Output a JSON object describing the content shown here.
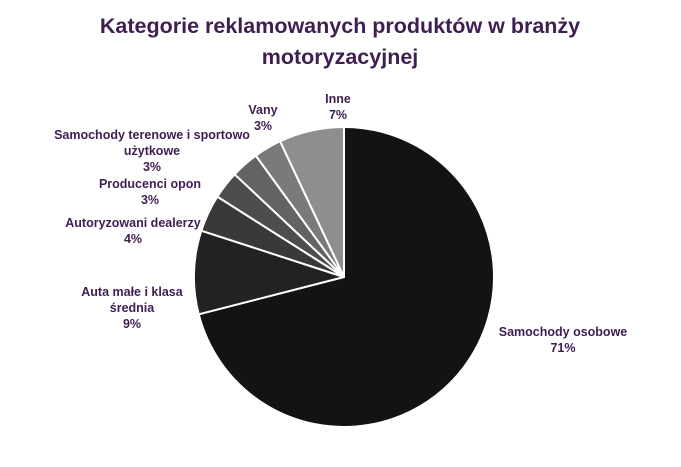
{
  "chart_data": {
    "type": "pie",
    "title_lines": [
      "Kategorie reklamowanych produktów w branży",
      "motoryzacyjnej"
    ],
    "start": "12 o'clock",
    "direction": "clockwise",
    "legend": "none (data labels next to slices)",
    "slices": [
      {
        "label": "Samochody osobowe",
        "label_lines": [
          "Samochody osobowe"
        ],
        "value_label": "71%",
        "value": 71,
        "color": "#131313"
      },
      {
        "label": "Auta małe i klasa średnia",
        "label_lines": [
          "Auta małe i klasa",
          "średnia"
        ],
        "value_label": "9%",
        "value": 9,
        "color": "#222222"
      },
      {
        "label": "Autoryzowani dealerzy",
        "label_lines": [
          "Autoryzowani dealerzy"
        ],
        "value_label": "4%",
        "value": 4,
        "color": "#393939"
      },
      {
        "label": "Producenci opon",
        "label_lines": [
          "Producenci opon"
        ],
        "value_label": "3%",
        "value": 3,
        "color": "#4d4d4d"
      },
      {
        "label": "Samochody terenowe i sportowo użytkowe",
        "label_lines": [
          "Samochody terenowe i sportowo",
          "użytkowe"
        ],
        "value_label": "3%",
        "value": 3,
        "color": "#636363"
      },
      {
        "label": "Vany",
        "label_lines": [
          "Vany"
        ],
        "value_label": "3%",
        "value": 3,
        "color": "#7a7a7a"
      },
      {
        "label": "Inne",
        "label_lines": [
          "Inne"
        ],
        "value_label": "7%",
        "value": 7,
        "color": "#8e8e8e"
      }
    ],
    "colors": {
      "text": "#3f1e52",
      "slice_border": "#ffffff"
    }
  }
}
